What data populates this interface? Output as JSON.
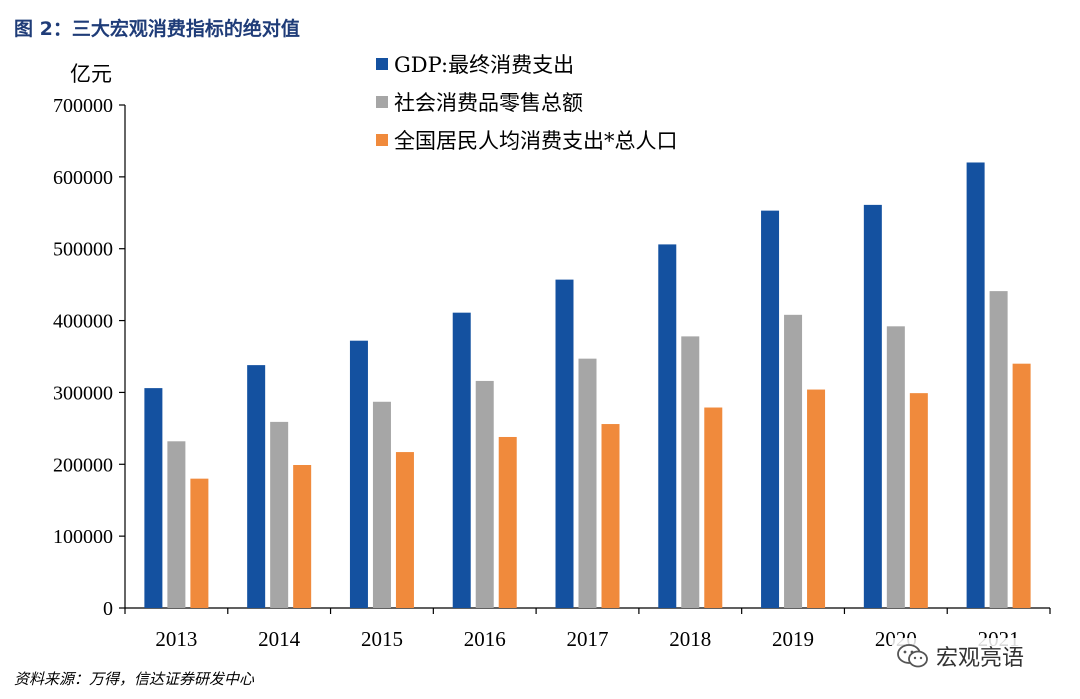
{
  "figure": {
    "title": "图 2：三大宏观消费指标的绝对值",
    "unit_label": "亿元",
    "source": "资料来源：万得，信达证券研发中心",
    "watermark": "宏观亮语"
  },
  "colors": {
    "gdp": "#1451a0",
    "retail": "#a6a6a6",
    "percapita": "#f08a3c",
    "axis": "#000000"
  },
  "chart_data": {
    "type": "bar",
    "title": "",
    "xlabel": "",
    "ylabel": "亿元",
    "ylim": [
      0,
      700000
    ],
    "yticks": [
      0,
      100000,
      200000,
      300000,
      400000,
      500000,
      600000,
      700000
    ],
    "ytick_labels": [
      "0",
      "100000",
      "200000",
      "300000",
      "400000",
      "500000",
      "600000",
      "700000"
    ],
    "categories": [
      "2013",
      "2014",
      "2015",
      "2016",
      "2017",
      "2018",
      "2019",
      "2020",
      "2021"
    ],
    "series": [
      {
        "name": "GDP:最终消费支出",
        "color_key": "gdp",
        "values": [
          306000,
          338000,
          372000,
          411000,
          457000,
          506000,
          553000,
          561000,
          620000
        ]
      },
      {
        "name": "社会消费品零售总额",
        "color_key": "retail",
        "values": [
          232000,
          259000,
          287000,
          316000,
          347000,
          378000,
          408000,
          392000,
          441000
        ]
      },
      {
        "name": "全国居民人均消费支出*总人口",
        "color_key": "percapita",
        "values": [
          180000,
          199000,
          217000,
          238000,
          256000,
          279000,
          304000,
          299000,
          340000
        ]
      }
    ],
    "legend_position": "top-center",
    "grid": false
  }
}
